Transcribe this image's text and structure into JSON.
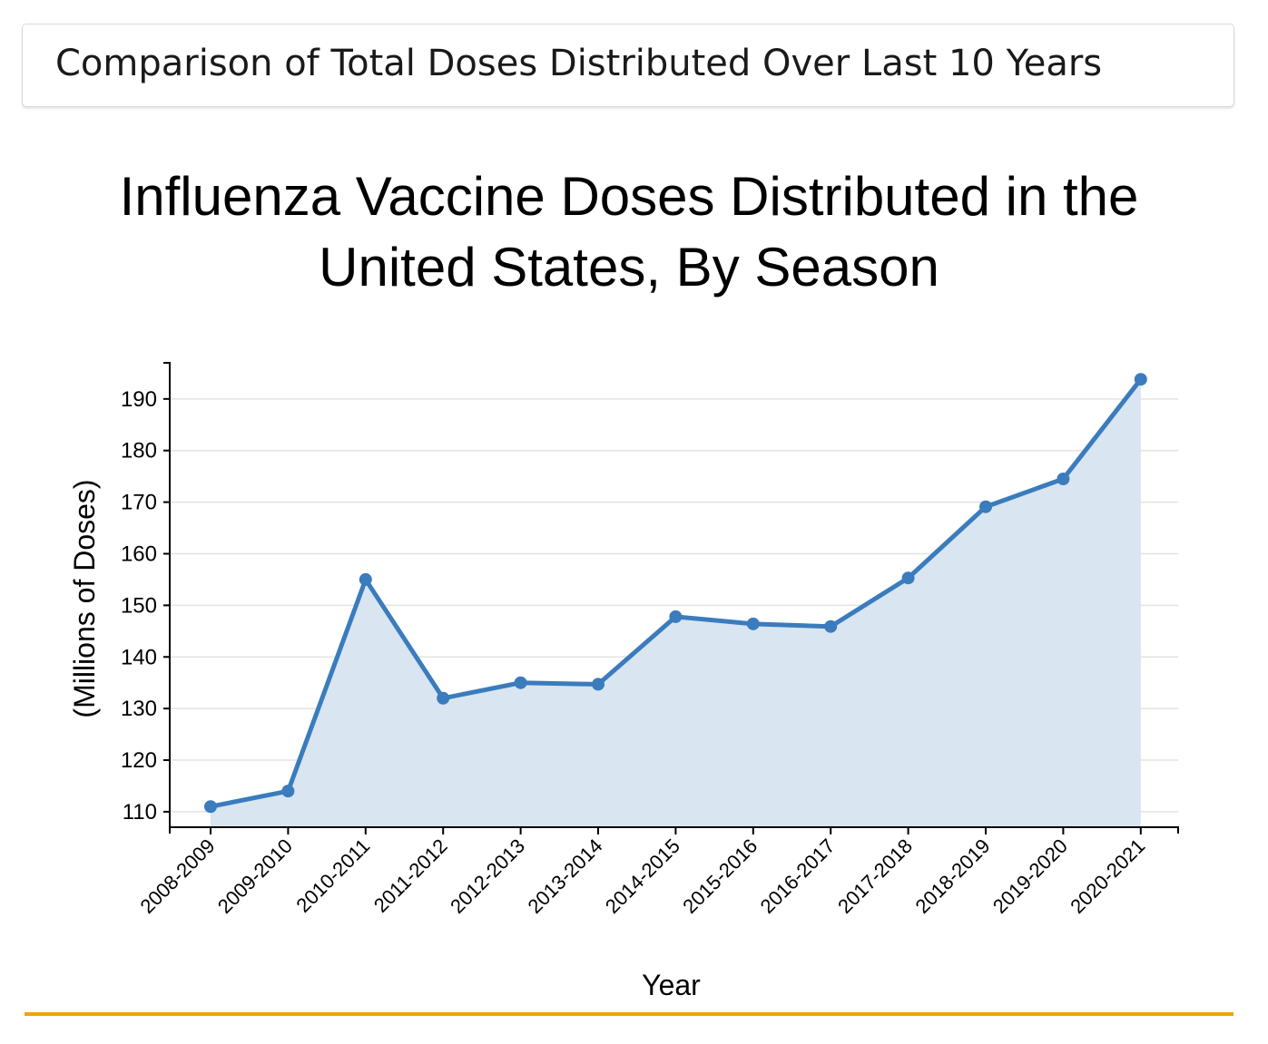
{
  "header": {
    "label": "Comparison of Total Doses Distributed Over Last 10 Years"
  },
  "colors": {
    "line": "#3a7cbd",
    "area": "#d9e5f1",
    "grid": "#e3e3e3",
    "accent_rule": "#f0a30a"
  },
  "chart_data": {
    "type": "area",
    "title": "Influenza Vaccine Doses Distributed in the United States, By Season",
    "xlabel": "Year",
    "ylabel": "(Millions of Doses)",
    "ylim": [
      107,
      197
    ],
    "yticks": [
      110,
      120,
      130,
      140,
      150,
      160,
      170,
      180,
      190
    ],
    "grid": true,
    "categories": [
      "2008-2009",
      "2009-2010",
      "2010-2011",
      "2011-2012",
      "2012-2013",
      "2013-2014",
      "2014-2015",
      "2015-2016",
      "2016-2017",
      "2017-2018",
      "2018-2019",
      "2019-2020",
      "2020-2021"
    ],
    "series": [
      {
        "values": [
          111.0,
          114.0,
          155.0,
          132.0,
          135.0,
          134.7,
          147.8,
          146.4,
          145.9,
          155.3,
          169.1,
          174.5,
          193.8
        ]
      }
    ]
  }
}
